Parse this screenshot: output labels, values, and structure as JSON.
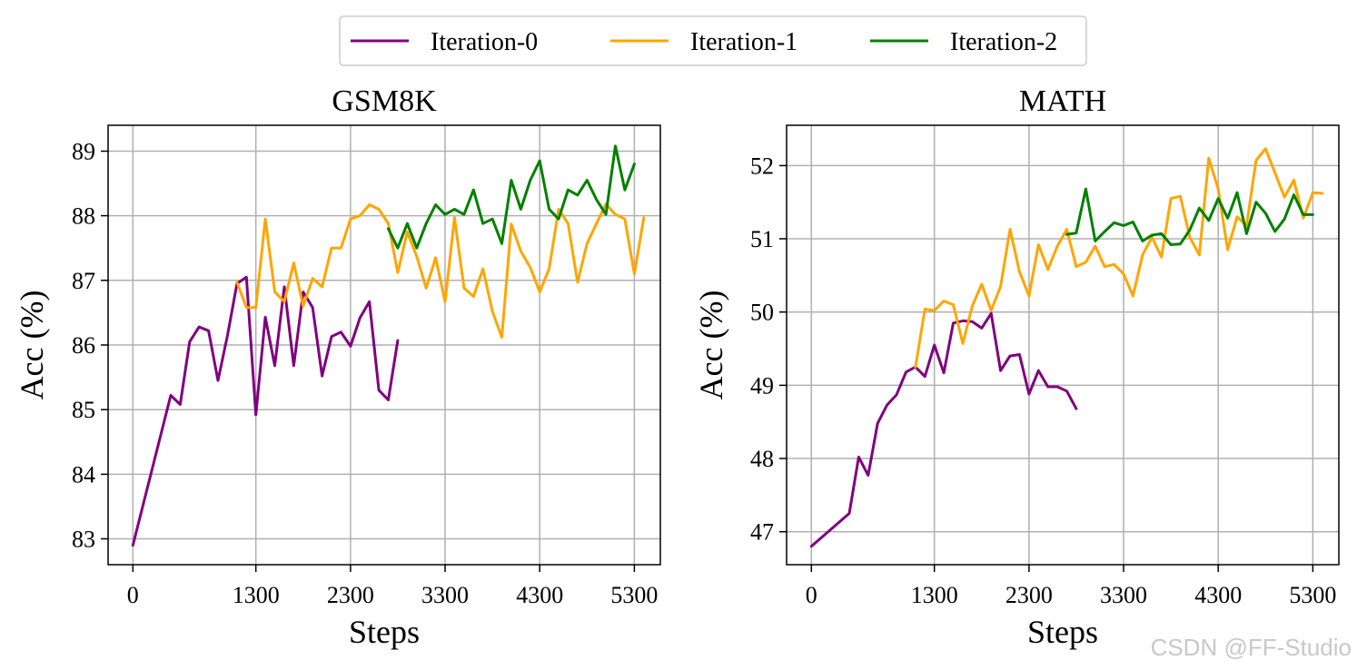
{
  "legend": {
    "items": [
      {
        "label": "Iteration-0",
        "color": "#800080"
      },
      {
        "label": "Iteration-1",
        "color": "#FFA500"
      },
      {
        "label": "Iteration-2",
        "color": "#008000"
      }
    ]
  },
  "watermark": "CSDN @FF-Studio",
  "chart_data": [
    {
      "type": "line",
      "title": "GSM8K",
      "xlabel": "Steps",
      "ylabel": "Acc (%)",
      "xticks": [
        0,
        1300,
        2300,
        3300,
        4300,
        5300
      ],
      "xtick_labels": [
        "0",
        "1300",
        "2300",
        "3300",
        "4300",
        "5300"
      ],
      "yticks": [
        83,
        84,
        85,
        86,
        87,
        88,
        89
      ],
      "ytick_labels": [
        "83",
        "84",
        "85",
        "86",
        "87",
        "88",
        "89"
      ],
      "xlim": [
        -262,
        5575
      ],
      "ylim": [
        82.6,
        89.4
      ],
      "grid": true,
      "legend": "top-center",
      "series": [
        {
          "name": "Iteration-0",
          "color": "#800080",
          "points": [
            [
              0,
              82.9
            ],
            [
              400,
              85.22
            ],
            [
              500,
              85.08
            ],
            [
              600,
              86.05
            ],
            [
              700,
              86.28
            ],
            [
              800,
              86.22
            ],
            [
              900,
              85.45
            ],
            [
              1000,
              86.15
            ],
            [
              1100,
              86.95
            ],
            [
              1200,
              87.05
            ],
            [
              1300,
              84.92
            ],
            [
              1400,
              86.43
            ],
            [
              1500,
              85.68
            ],
            [
              1600,
              86.9
            ],
            [
              1700,
              85.68
            ],
            [
              1800,
              86.82
            ],
            [
              1900,
              86.58
            ],
            [
              2000,
              85.52
            ],
            [
              2100,
              86.13
            ],
            [
              2200,
              86.2
            ],
            [
              2300,
              85.98
            ],
            [
              2400,
              86.42
            ],
            [
              2500,
              86.67
            ],
            [
              2600,
              85.3
            ],
            [
              2700,
              85.15
            ],
            [
              2800,
              86.07
            ]
          ]
        },
        {
          "name": "Iteration-1",
          "color": "#FFA500",
          "points": [
            [
              1100,
              86.97
            ],
            [
              1200,
              86.58
            ],
            [
              1300,
              86.58
            ],
            [
              1400,
              87.95
            ],
            [
              1500,
              86.82
            ],
            [
              1600,
              86.67
            ],
            [
              1700,
              87.27
            ],
            [
              1800,
              86.6
            ],
            [
              1900,
              87.03
            ],
            [
              2000,
              86.9
            ],
            [
              2100,
              87.5
            ],
            [
              2200,
              87.5
            ],
            [
              2300,
              87.95
            ],
            [
              2400,
              88.0
            ],
            [
              2500,
              88.17
            ],
            [
              2600,
              88.1
            ],
            [
              2700,
              87.88
            ],
            [
              2800,
              87.12
            ],
            [
              2900,
              87.75
            ],
            [
              3000,
              87.37
            ],
            [
              3100,
              86.88
            ],
            [
              3200,
              87.35
            ],
            [
              3300,
              86.67
            ],
            [
              3400,
              87.97
            ],
            [
              3500,
              86.88
            ],
            [
              3600,
              86.75
            ],
            [
              3700,
              87.18
            ],
            [
              3800,
              86.52
            ],
            [
              3900,
              86.12
            ],
            [
              4000,
              87.87
            ],
            [
              4100,
              87.45
            ],
            [
              4200,
              87.2
            ],
            [
              4300,
              86.82
            ],
            [
              4400,
              87.18
            ],
            [
              4500,
              88.1
            ],
            [
              4600,
              87.88
            ],
            [
              4700,
              86.97
            ],
            [
              4800,
              87.57
            ],
            [
              4900,
              87.88
            ],
            [
              5000,
              88.18
            ],
            [
              5100,
              88.02
            ],
            [
              5200,
              87.95
            ],
            [
              5300,
              87.1
            ],
            [
              5400,
              87.97
            ]
          ]
        },
        {
          "name": "Iteration-2",
          "color": "#008000",
          "points": [
            [
              2700,
              87.8
            ],
            [
              2800,
              87.5
            ],
            [
              2900,
              87.88
            ],
            [
              3000,
              87.5
            ],
            [
              3100,
              87.88
            ],
            [
              3200,
              88.17
            ],
            [
              3300,
              88.02
            ],
            [
              3400,
              88.1
            ],
            [
              3500,
              88.02
            ],
            [
              3600,
              88.4
            ],
            [
              3700,
              87.88
            ],
            [
              3800,
              87.95
            ],
            [
              3900,
              87.57
            ],
            [
              4000,
              88.55
            ],
            [
              4100,
              88.1
            ],
            [
              4200,
              88.55
            ],
            [
              4300,
              88.85
            ],
            [
              4400,
              88.1
            ],
            [
              4500,
              87.95
            ],
            [
              4600,
              88.4
            ],
            [
              4700,
              88.32
            ],
            [
              4800,
              88.55
            ],
            [
              4900,
              88.25
            ],
            [
              5000,
              88.02
            ],
            [
              5100,
              89.08
            ],
            [
              5200,
              88.4
            ],
            [
              5300,
              88.8
            ]
          ]
        }
      ]
    },
    {
      "type": "line",
      "title": "MATH",
      "xlabel": "Steps",
      "ylabel": "Acc (%)",
      "xticks": [
        0,
        1300,
        2300,
        3300,
        4300,
        5300
      ],
      "xtick_labels": [
        "0",
        "1300",
        "2300",
        "3300",
        "4300",
        "5300"
      ],
      "yticks": [
        47,
        48,
        49,
        50,
        51,
        52
      ],
      "ytick_labels": [
        "47",
        "48",
        "49",
        "50",
        "51",
        "52"
      ],
      "xlim": [
        -262,
        5575
      ],
      "ylim": [
        46.55,
        52.55
      ],
      "grid": true,
      "legend": "top-center",
      "series": [
        {
          "name": "Iteration-0",
          "color": "#800080",
          "points": [
            [
              0,
              46.8
            ],
            [
              400,
              47.25
            ],
            [
              500,
              48.02
            ],
            [
              600,
              47.77
            ],
            [
              700,
              48.48
            ],
            [
              800,
              48.73
            ],
            [
              900,
              48.87
            ],
            [
              1000,
              49.18
            ],
            [
              1100,
              49.25
            ],
            [
              1200,
              49.12
            ],
            [
              1300,
              49.55
            ],
            [
              1400,
              49.17
            ],
            [
              1500,
              49.85
            ],
            [
              1600,
              49.88
            ],
            [
              1700,
              49.87
            ],
            [
              1800,
              49.78
            ],
            [
              1900,
              49.98
            ],
            [
              2000,
              49.2
            ],
            [
              2100,
              49.4
            ],
            [
              2200,
              49.42
            ],
            [
              2300,
              48.88
            ],
            [
              2400,
              49.2
            ],
            [
              2500,
              48.98
            ],
            [
              2600,
              48.98
            ],
            [
              2700,
              48.92
            ],
            [
              2800,
              48.68
            ]
          ]
        },
        {
          "name": "Iteration-1",
          "color": "#FFA500",
          "points": [
            [
              1100,
              49.25
            ],
            [
              1200,
              50.04
            ],
            [
              1300,
              50.02
            ],
            [
              1400,
              50.15
            ],
            [
              1500,
              50.1
            ],
            [
              1600,
              49.57
            ],
            [
              1700,
              50.08
            ],
            [
              1800,
              50.38
            ],
            [
              1900,
              50.02
            ],
            [
              2000,
              50.35
            ],
            [
              2100,
              51.13
            ],
            [
              2200,
              50.55
            ],
            [
              2300,
              50.22
            ],
            [
              2400,
              50.92
            ],
            [
              2500,
              50.58
            ],
            [
              2600,
              50.9
            ],
            [
              2700,
              51.13
            ],
            [
              2800,
              50.62
            ],
            [
              2900,
              50.68
            ],
            [
              3000,
              50.9
            ],
            [
              3100,
              50.62
            ],
            [
              3200,
              50.65
            ],
            [
              3300,
              50.52
            ],
            [
              3400,
              50.22
            ],
            [
              3500,
              50.78
            ],
            [
              3600,
              51.02
            ],
            [
              3700,
              50.75
            ],
            [
              3800,
              51.55
            ],
            [
              3900,
              51.58
            ],
            [
              4000,
              51.02
            ],
            [
              4100,
              50.78
            ],
            [
              4200,
              52.1
            ],
            [
              4300,
              51.68
            ],
            [
              4400,
              50.85
            ],
            [
              4500,
              51.3
            ],
            [
              4600,
              51.18
            ],
            [
              4700,
              52.07
            ],
            [
              4800,
              52.23
            ],
            [
              4900,
              51.9
            ],
            [
              5000,
              51.57
            ],
            [
              5100,
              51.8
            ],
            [
              5200,
              51.28
            ],
            [
              5300,
              51.63
            ],
            [
              5400,
              51.62
            ]
          ]
        },
        {
          "name": "Iteration-2",
          "color": "#008000",
          "points": [
            [
              2700,
              51.06
            ],
            [
              2800,
              51.08
            ],
            [
              2900,
              51.68
            ],
            [
              3000,
              50.97
            ],
            [
              3100,
              51.1
            ],
            [
              3200,
              51.22
            ],
            [
              3300,
              51.18
            ],
            [
              3400,
              51.23
            ],
            [
              3500,
              50.97
            ],
            [
              3600,
              51.05
            ],
            [
              3700,
              51.07
            ],
            [
              3800,
              50.92
            ],
            [
              3900,
              50.93
            ],
            [
              4000,
              51.12
            ],
            [
              4100,
              51.42
            ],
            [
              4200,
              51.25
            ],
            [
              4300,
              51.55
            ],
            [
              4400,
              51.28
            ],
            [
              4500,
              51.63
            ],
            [
              4600,
              51.07
            ],
            [
              4700,
              51.5
            ],
            [
              4800,
              51.35
            ],
            [
              4900,
              51.1
            ],
            [
              5000,
              51.27
            ],
            [
              5100,
              51.6
            ],
            [
              5200,
              51.33
            ],
            [
              5300,
              51.33
            ]
          ]
        }
      ]
    }
  ]
}
